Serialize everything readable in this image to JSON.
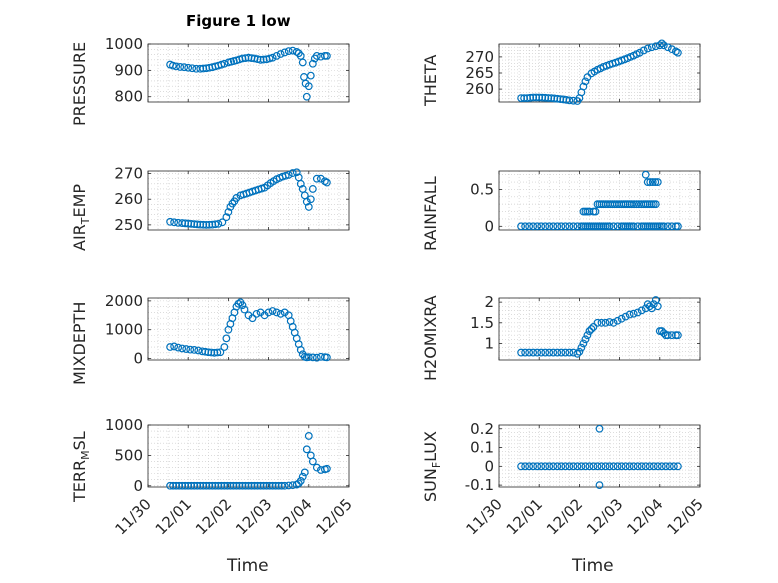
{
  "window": {
    "title": "Figure 1 low"
  },
  "chart_data": [
    {
      "type": "scatter",
      "panel": "pressure",
      "title": "Figure 1 low",
      "ylabel": "PRESSURE",
      "ylim": [
        780,
        1000
      ],
      "yticks": [
        "800",
        "900",
        "1000"
      ],
      "ytick_values": [
        800,
        900,
        1000
      ],
      "xlim": [
        0,
        5
      ],
      "grid": true,
      "series": [
        {
          "marker": "circle",
          "x": [
            0.55,
            0.62,
            0.7,
            0.8,
            0.9,
            1.0,
            1.1,
            1.2,
            1.3,
            1.45,
            1.6,
            1.75,
            1.9,
            2.0,
            2.2,
            2.35,
            2.5,
            2.65,
            2.8,
            2.95,
            3.1,
            3.2,
            3.3,
            3.4,
            3.5,
            3.6,
            3.7,
            3.75,
            3.8,
            3.85,
            3.88,
            3.92,
            3.95,
            4.0,
            4.05,
            4.1,
            4.15,
            4.2,
            4.3,
            4.4,
            4.45
          ],
          "y": [
            922,
            918,
            915,
            913,
            912,
            910,
            908,
            906,
            906,
            908,
            912,
            918,
            925,
            930,
            938,
            945,
            948,
            945,
            940,
            942,
            948,
            955,
            962,
            968,
            973,
            975,
            970,
            965,
            955,
            930,
            875,
            850,
            800,
            840,
            880,
            925,
            945,
            955,
            952,
            955,
            955
          ]
        }
      ]
    },
    {
      "type": "scatter",
      "panel": "theta",
      "ylabel": "THETA",
      "ylim": [
        256,
        274
      ],
      "yticks": [
        "260",
        "265",
        "270"
      ],
      "ytick_values": [
        260,
        265,
        270
      ],
      "xlim": [
        0,
        5
      ],
      "grid": true,
      "series": [
        {
          "marker": "circle",
          "x": [
            0.55,
            0.7,
            0.85,
            1.0,
            1.15,
            1.3,
            1.45,
            1.6,
            1.75,
            1.85,
            1.95,
            2.0,
            2.05,
            2.1,
            2.15,
            2.2,
            2.3,
            2.45,
            2.6,
            2.75,
            2.9,
            3.05,
            3.2,
            3.35,
            3.5,
            3.6,
            3.7,
            3.8,
            3.9,
            4.0,
            4.05,
            4.1,
            4.2,
            4.3,
            4.4,
            4.45
          ],
          "y": [
            257.2,
            257.2,
            257.4,
            257.4,
            257.3,
            257.2,
            257.0,
            256.8,
            256.5,
            256.4,
            256.3,
            257.2,
            259.0,
            260.8,
            262.4,
            263.7,
            264.9,
            266.0,
            266.9,
            267.6,
            268.2,
            268.9,
            269.6,
            270.4,
            271.3,
            272.0,
            272.6,
            273.0,
            273.3,
            273.6,
            274.2,
            273.6,
            273.0,
            272.4,
            271.7,
            271.3
          ]
        }
      ]
    },
    {
      "type": "scatter",
      "panel": "air_temp",
      "ylabel": "AIR_TEMP",
      "ylabel_main": "AIR",
      "ylabel_sub": "T",
      "ylabel_tail": "EMP",
      "ylim": [
        248,
        271
      ],
      "yticks": [
        "250",
        "260",
        "270"
      ],
      "ytick_values": [
        250,
        260,
        270
      ],
      "xlim": [
        0,
        5
      ],
      "grid": true,
      "series": [
        {
          "marker": "circle",
          "x": [
            0.55,
            0.65,
            0.75,
            0.85,
            1.0,
            1.15,
            1.3,
            1.45,
            1.6,
            1.75,
            1.85,
            1.95,
            2.0,
            2.05,
            2.1,
            2.15,
            2.2,
            2.3,
            2.45,
            2.6,
            2.75,
            2.9,
            3.05,
            3.2,
            3.35,
            3.5,
            3.6,
            3.7,
            3.75,
            3.8,
            3.85,
            3.9,
            3.95,
            4.0,
            4.05,
            4.1,
            4.2,
            4.3,
            4.4,
            4.45
          ],
          "y": [
            251.2,
            251.0,
            250.8,
            250.7,
            250.5,
            250.3,
            250.1,
            250.0,
            250.1,
            250.4,
            251.0,
            253.0,
            255.0,
            257.0,
            258.3,
            259.2,
            260.5,
            261.5,
            262.2,
            263.0,
            263.8,
            264.5,
            266.3,
            267.8,
            268.8,
            269.5,
            270.2,
            270.5,
            268.5,
            266.0,
            264.0,
            261.5,
            259.0,
            257.0,
            260.0,
            264.0,
            268.0,
            268.0,
            267.0,
            266.5
          ]
        }
      ]
    },
    {
      "type": "scatter",
      "panel": "rainfall",
      "ylabel": "RAINFALL",
      "ylim": [
        -0.05,
        0.75
      ],
      "yticks": [
        "0",
        "0.5"
      ],
      "ytick_values": [
        0,
        0.5
      ],
      "xlim": [
        0,
        5
      ],
      "grid": true,
      "series": [
        {
          "marker": "circle",
          "x": [
            0.55,
            0.65,
            0.75,
            0.85,
            0.95,
            1.05,
            1.15,
            1.25,
            1.35,
            1.45,
            1.55,
            1.65,
            1.75,
            1.85,
            1.95,
            2.05,
            2.1,
            2.15,
            2.2,
            2.25,
            2.3,
            2.35,
            2.4,
            2.45,
            2.5,
            2.55,
            2.6,
            2.65,
            2.7,
            2.75,
            2.85,
            2.95,
            3.05,
            3.1,
            3.15,
            3.2,
            3.25,
            3.3,
            3.35,
            3.45,
            3.55,
            3.6,
            3.65,
            3.7,
            3.75,
            3.8,
            3.85,
            3.9,
            3.95,
            4.0,
            4.05,
            4.1,
            4.2,
            4.3,
            4.4,
            4.45,
            2.1,
            2.15,
            2.2,
            2.25,
            2.35,
            2.4,
            2.45,
            2.5,
            2.55,
            2.6,
            3.1,
            3.15,
            3.2,
            3.25,
            3.3,
            3.6,
            3.65,
            3.7,
            3.75,
            3.8,
            3.85,
            3.9,
            3.65,
            3.7,
            3.95
          ],
          "y": [
            0,
            0,
            0,
            0,
            0,
            0,
            0,
            0,
            0,
            0,
            0,
            0,
            0,
            0,
            0,
            0,
            0,
            0,
            0,
            0,
            0,
            0,
            0,
            0,
            0,
            0,
            0,
            0,
            0,
            0,
            0,
            0,
            0,
            0,
            0,
            0,
            0,
            0,
            0,
            0,
            0,
            0,
            0,
            0,
            0,
            0,
            0,
            0,
            0,
            0,
            0,
            0,
            0,
            0,
            0,
            0,
            0.2,
            0.2,
            0.2,
            0.2,
            0.2,
            0.2,
            0.3,
            0.3,
            0.3,
            0.3,
            0.3,
            0.3,
            0.3,
            0.3,
            0.3,
            0.3,
            0.3,
            0.3,
            0.3,
            0.3,
            0.3,
            0.3,
            0.7,
            0.6,
            0.6
          ]
        }
      ]
    },
    {
      "type": "scatter",
      "panel": "mixdepth",
      "ylabel": "MIXDEPTH",
      "ylim": [
        -50,
        2100
      ],
      "yticks": [
        "0",
        "1000",
        "2000"
      ],
      "ytick_values": [
        0,
        1000,
        2000
      ],
      "xlim": [
        0,
        5
      ],
      "grid": true,
      "series": [
        {
          "marker": "circle",
          "x": [
            0.55,
            0.65,
            0.75,
            0.85,
            0.95,
            1.05,
            1.15,
            1.25,
            1.35,
            1.5,
            1.65,
            1.8,
            1.9,
            1.95,
            2.0,
            2.05,
            2.1,
            2.15,
            2.2,
            2.25,
            2.3,
            2.35,
            2.4,
            2.5,
            2.6,
            2.7,
            2.8,
            2.9,
            3.0,
            3.1,
            3.2,
            3.3,
            3.4,
            3.5,
            3.55,
            3.6,
            3.65,
            3.7,
            3.75,
            3.8,
            3.85,
            3.9,
            3.95,
            4.0,
            4.1,
            4.2,
            4.3,
            4.4,
            4.45
          ],
          "y": [
            400,
            420,
            380,
            350,
            330,
            310,
            300,
            280,
            250,
            220,
            200,
            220,
            400,
            700,
            1000,
            1200,
            1400,
            1600,
            1800,
            1900,
            1950,
            1850,
            1700,
            1500,
            1400,
            1550,
            1600,
            1500,
            1600,
            1650,
            1600,
            1550,
            1600,
            1500,
            1300,
            1100,
            900,
            700,
            500,
            300,
            150,
            60,
            40,
            50,
            40,
            30,
            60,
            50,
            40
          ]
        }
      ]
    },
    {
      "type": "scatter",
      "panel": "h2omixra",
      "ylabel": "H2OMIXRA",
      "ylim": [
        0.6,
        2.1
      ],
      "yticks": [
        "1",
        "1.5",
        "2"
      ],
      "ytick_values": [
        1,
        1.5,
        2
      ],
      "xlim": [
        0,
        5
      ],
      "grid": true,
      "series": [
        {
          "marker": "circle",
          "x": [
            0.55,
            0.65,
            0.75,
            0.85,
            0.95,
            1.05,
            1.15,
            1.25,
            1.35,
            1.45,
            1.55,
            1.65,
            1.75,
            1.85,
            1.95,
            2.0,
            2.05,
            2.1,
            2.15,
            2.2,
            2.25,
            2.3,
            2.35,
            2.45,
            2.55,
            2.65,
            2.75,
            2.85,
            2.95,
            3.05,
            3.15,
            3.25,
            3.35,
            3.45,
            3.55,
            3.65,
            3.7,
            3.75,
            3.8,
            3.85,
            3.9,
            3.95,
            4.0,
            4.05,
            4.1,
            4.15,
            4.2,
            4.3,
            4.4,
            4.45
          ],
          "y": [
            0.78,
            0.78,
            0.78,
            0.78,
            0.78,
            0.78,
            0.78,
            0.78,
            0.78,
            0.78,
            0.78,
            0.78,
            0.78,
            0.78,
            0.75,
            0.8,
            0.9,
            1.0,
            1.1,
            1.2,
            1.3,
            1.35,
            1.4,
            1.5,
            1.5,
            1.5,
            1.52,
            1.5,
            1.55,
            1.6,
            1.65,
            1.7,
            1.72,
            1.75,
            1.8,
            1.85,
            1.95,
            1.9,
            1.85,
            1.95,
            2.05,
            1.9,
            1.3,
            1.3,
            1.25,
            1.2,
            1.2,
            1.2,
            1.2,
            1.2
          ]
        }
      ]
    },
    {
      "type": "scatter",
      "panel": "terr_msl",
      "ylabel": "TERR_MSL",
      "ylabel_main": "TERR",
      "ylabel_sub": "M",
      "ylabel_tail": "SL",
      "ylim": [
        -20,
        1000
      ],
      "yticks": [
        "0",
        "500",
        "1000"
      ],
      "ytick_values": [
        0,
        500,
        1000
      ],
      "xlim": [
        0,
        5
      ],
      "xlabel": "Time",
      "xticks": [
        "11/30",
        "12/01",
        "12/02",
        "12/03",
        "12/04",
        "12/05"
      ],
      "xtick_values": [
        0,
        1,
        2,
        3,
        4,
        5
      ],
      "grid": true,
      "series": [
        {
          "marker": "circle",
          "x": [
            0.55,
            0.7,
            0.85,
            1.0,
            1.15,
            1.3,
            1.45,
            1.6,
            1.75,
            1.9,
            2.05,
            2.2,
            2.35,
            2.5,
            2.65,
            2.8,
            2.95,
            3.1,
            3.25,
            3.4,
            3.5,
            3.6,
            3.7,
            3.75,
            3.8,
            3.85,
            3.9,
            3.95,
            4.0,
            4.05,
            4.1,
            4.2,
            4.3,
            4.4,
            4.45
          ],
          "y": [
            0,
            0,
            0,
            0,
            0,
            0,
            0,
            0,
            0,
            0,
            0,
            0,
            0,
            0,
            0,
            0,
            0,
            0,
            0,
            0,
            5,
            10,
            20,
            40,
            80,
            150,
            220,
            600,
            820,
            500,
            400,
            300,
            260,
            270,
            280
          ]
        }
      ]
    },
    {
      "type": "scatter",
      "panel": "sun_flux",
      "ylabel": "SUN_FLUX",
      "ylabel_main": "SUN",
      "ylabel_sub": "F",
      "ylabel_tail": "LUX",
      "ylim": [
        -0.11,
        0.22
      ],
      "yticks": [
        "-0.1",
        "0",
        "0.1",
        "0.2"
      ],
      "ytick_values": [
        -0.1,
        0,
        0.1,
        0.2
      ],
      "xlim": [
        0,
        5
      ],
      "xlabel": "Time",
      "xticks": [
        "11/30",
        "12/01",
        "12/02",
        "12/03",
        "12/04",
        "12/05"
      ],
      "xtick_values": [
        0,
        1,
        2,
        3,
        4,
        5
      ],
      "grid": true,
      "series": [
        {
          "marker": "circle",
          "x": [
            0.55,
            0.65,
            0.75,
            0.85,
            0.95,
            1.05,
            1.15,
            1.25,
            1.35,
            1.45,
            1.55,
            1.65,
            1.75,
            1.85,
            1.95,
            2.05,
            2.15,
            2.25,
            2.35,
            2.45,
            2.55,
            2.65,
            2.75,
            2.85,
            2.95,
            3.05,
            3.15,
            3.25,
            3.35,
            3.45,
            3.55,
            3.65,
            3.75,
            3.85,
            3.95,
            4.05,
            4.15,
            4.25,
            4.35,
            4.45,
            2.5,
            2.5
          ],
          "y": [
            0,
            0,
            0,
            0,
            0,
            0,
            0,
            0,
            0,
            0,
            0,
            0,
            0,
            0,
            0,
            0,
            0,
            0,
            0,
            0,
            0,
            0,
            0,
            0,
            0,
            0,
            0,
            0,
            0,
            0,
            0,
            0,
            0,
            0,
            0,
            0,
            0,
            0,
            0,
            0,
            0.2,
            -0.1
          ]
        }
      ]
    }
  ],
  "colors": {
    "marker": "#0072BD",
    "axis": "#262626",
    "grid": "#c8c8c8",
    "background": "#ffffff"
  }
}
